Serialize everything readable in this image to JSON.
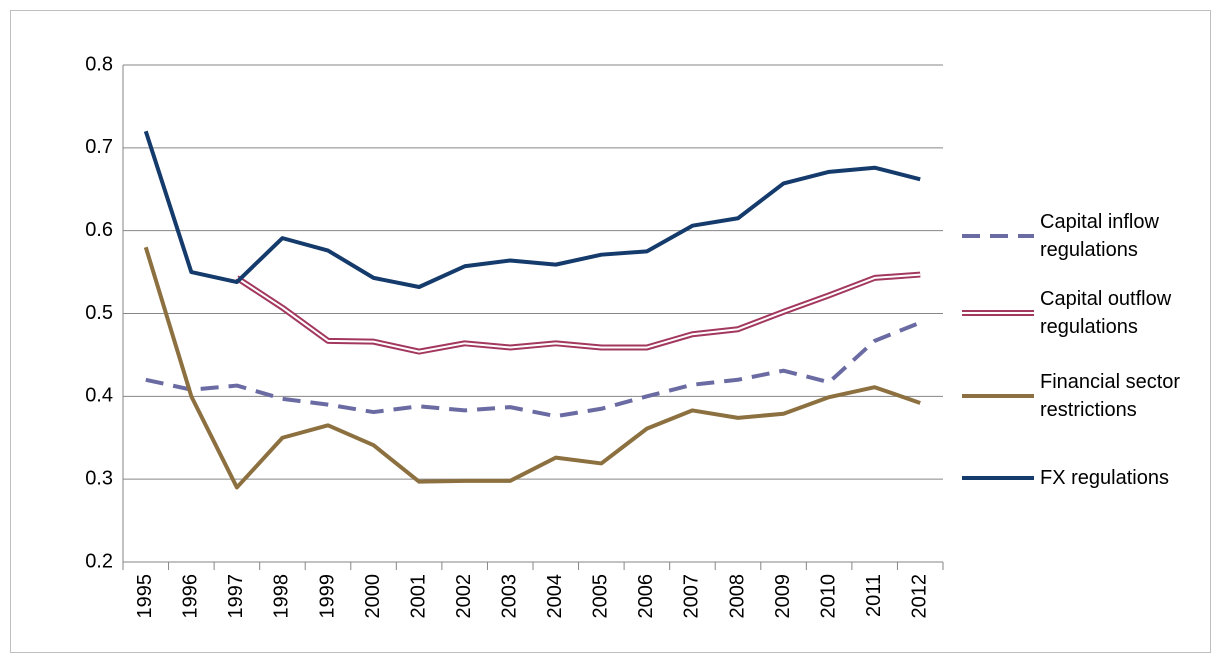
{
  "chart_data": {
    "type": "line",
    "categories": [
      "1995",
      "1996",
      "1997",
      "1998",
      "1999",
      "2000",
      "2001",
      "2002",
      "2003",
      "2004",
      "2005",
      "2006",
      "2007",
      "2008",
      "2009",
      "2010",
      "2011",
      "2012"
    ],
    "series": [
      {
        "name": "Capital inflow regulations",
        "color": "#6b6ba3",
        "line_style": "dashed",
        "values": [
          0.42,
          0.408,
          0.413,
          0.397,
          0.39,
          0.381,
          0.388,
          0.383,
          0.387,
          0.376,
          0.385,
          0.4,
          0.414,
          0.42,
          0.431,
          0.417,
          0.467,
          0.489
        ]
      },
      {
        "name": "Capital outflow regulations",
        "color": "#a3385e",
        "line_style": "double",
        "values": [
          null,
          null,
          0.543,
          0.507,
          0.467,
          0.466,
          0.454,
          0.464,
          0.459,
          0.464,
          0.459,
          0.459,
          0.475,
          0.481,
          0.502,
          0.522,
          0.543,
          0.547
        ]
      },
      {
        "name": "Financial sector restrictions",
        "color": "#8c7040",
        "line_style": "solid",
        "values": [
          0.58,
          0.4,
          0.29,
          0.35,
          0.365,
          0.341,
          0.297,
          0.298,
          0.298,
          0.326,
          0.319,
          0.361,
          0.383,
          0.374,
          0.379,
          0.399,
          0.411,
          0.392
        ]
      },
      {
        "name": "FX regulations",
        "color": "#143b6b",
        "line_style": "solid",
        "values": [
          0.72,
          0.55,
          0.538,
          0.591,
          0.576,
          0.543,
          0.532,
          0.557,
          0.564,
          0.559,
          0.571,
          0.575,
          0.606,
          0.615,
          0.657,
          0.671,
          0.676,
          0.662
        ]
      }
    ],
    "ylim": [
      0.2,
      0.8
    ],
    "yticks": [
      0.2,
      0.3,
      0.4,
      0.5,
      0.6,
      0.7,
      0.8
    ],
    "grid": true,
    "legend": "right"
  }
}
